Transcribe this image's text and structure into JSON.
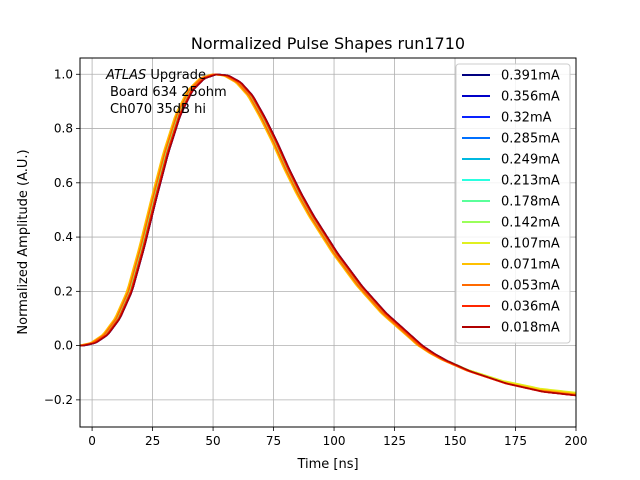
{
  "chart_data": {
    "type": "line",
    "title": "Normalized Pulse Shapes run1710",
    "xlabel": "Time [ns]",
    "ylabel": "Normalized Amplitude (A.U.)",
    "xlim": [
      -5,
      200
    ],
    "ylim": [
      -0.3,
      1.06
    ],
    "xticks": [
      0,
      25,
      50,
      75,
      100,
      125,
      150,
      175,
      200
    ],
    "xtick_labels": [
      "0",
      "25",
      "50",
      "75",
      "100",
      "125",
      "150",
      "175",
      "200"
    ],
    "yticks": [
      -0.2,
      0.0,
      0.2,
      0.4,
      0.6,
      0.8,
      1.0
    ],
    "ytick_labels": [
      "−0.2",
      "0.0",
      "0.2",
      "0.4",
      "0.6",
      "0.8",
      "1.0"
    ],
    "grid": true,
    "legend_position": "top-right",
    "annotation": {
      "italic_part": "ATLAS",
      "line1_rest": " Upgrade",
      "line2": "Board 634 25ohm",
      "line3": "Ch070 35dB hi"
    },
    "base_curve": {
      "x": [
        -5,
        0,
        5,
        10,
        15,
        20,
        25,
        30,
        35,
        40,
        45,
        50,
        55,
        60,
        65,
        70,
        75,
        80,
        85,
        90,
        95,
        100,
        105,
        110,
        115,
        120,
        125,
        130,
        135,
        140,
        145,
        150,
        155,
        160,
        165,
        170,
        175,
        180,
        185,
        190,
        195,
        200
      ],
      "y": [
        0.0,
        0.01,
        0.04,
        0.1,
        0.2,
        0.36,
        0.54,
        0.71,
        0.85,
        0.94,
        0.985,
        1.0,
        0.995,
        0.97,
        0.92,
        0.84,
        0.75,
        0.65,
        0.56,
        0.48,
        0.41,
        0.34,
        0.28,
        0.22,
        0.17,
        0.12,
        0.08,
        0.04,
        0.0,
        -0.03,
        -0.055,
        -0.075,
        -0.095,
        -0.11,
        -0.125,
        -0.14,
        -0.15,
        -0.16,
        -0.17,
        -0.175,
        -0.18,
        -0.185
      ]
    },
    "series": [
      {
        "name": "0.391mA",
        "color": "#000080",
        "peak_time": 54.5,
        "tail_delta": 0.0
      },
      {
        "name": "0.356mA",
        "color": "#0000c8",
        "peak_time": 54.5,
        "tail_delta": 0.0
      },
      {
        "name": "0.32mA",
        "color": "#0a22ff",
        "peak_time": 54.5,
        "tail_delta": 0.0
      },
      {
        "name": "0.285mA",
        "color": "#0070ff",
        "peak_time": 54.2,
        "tail_delta": 0.002
      },
      {
        "name": "0.249mA",
        "color": "#00b8e0",
        "peak_time": 54.0,
        "tail_delta": 0.004
      },
      {
        "name": "0.213mA",
        "color": "#2affe0",
        "peak_time": 53.8,
        "tail_delta": 0.006
      },
      {
        "name": "0.178mA",
        "color": "#5aff9a",
        "peak_time": 53.5,
        "tail_delta": 0.008
      },
      {
        "name": "0.142mA",
        "color": "#9aff5a",
        "peak_time": 53.2,
        "tail_delta": 0.01
      },
      {
        "name": "0.107mA",
        "color": "#e0f020",
        "peak_time": 52.8,
        "tail_delta": 0.012
      },
      {
        "name": "0.071mA",
        "color": "#ffc000",
        "peak_time": 52.4,
        "tail_delta": 0.008
      },
      {
        "name": "0.053mA",
        "color": "#ff6a00",
        "peak_time": 53.0,
        "tail_delta": 0.004
      },
      {
        "name": "0.036mA",
        "color": "#ff2600",
        "peak_time": 54.0,
        "tail_delta": 0.0
      },
      {
        "name": "0.018mA",
        "color": "#b00000",
        "peak_time": 54.5,
        "tail_delta": 0.0
      }
    ]
  }
}
